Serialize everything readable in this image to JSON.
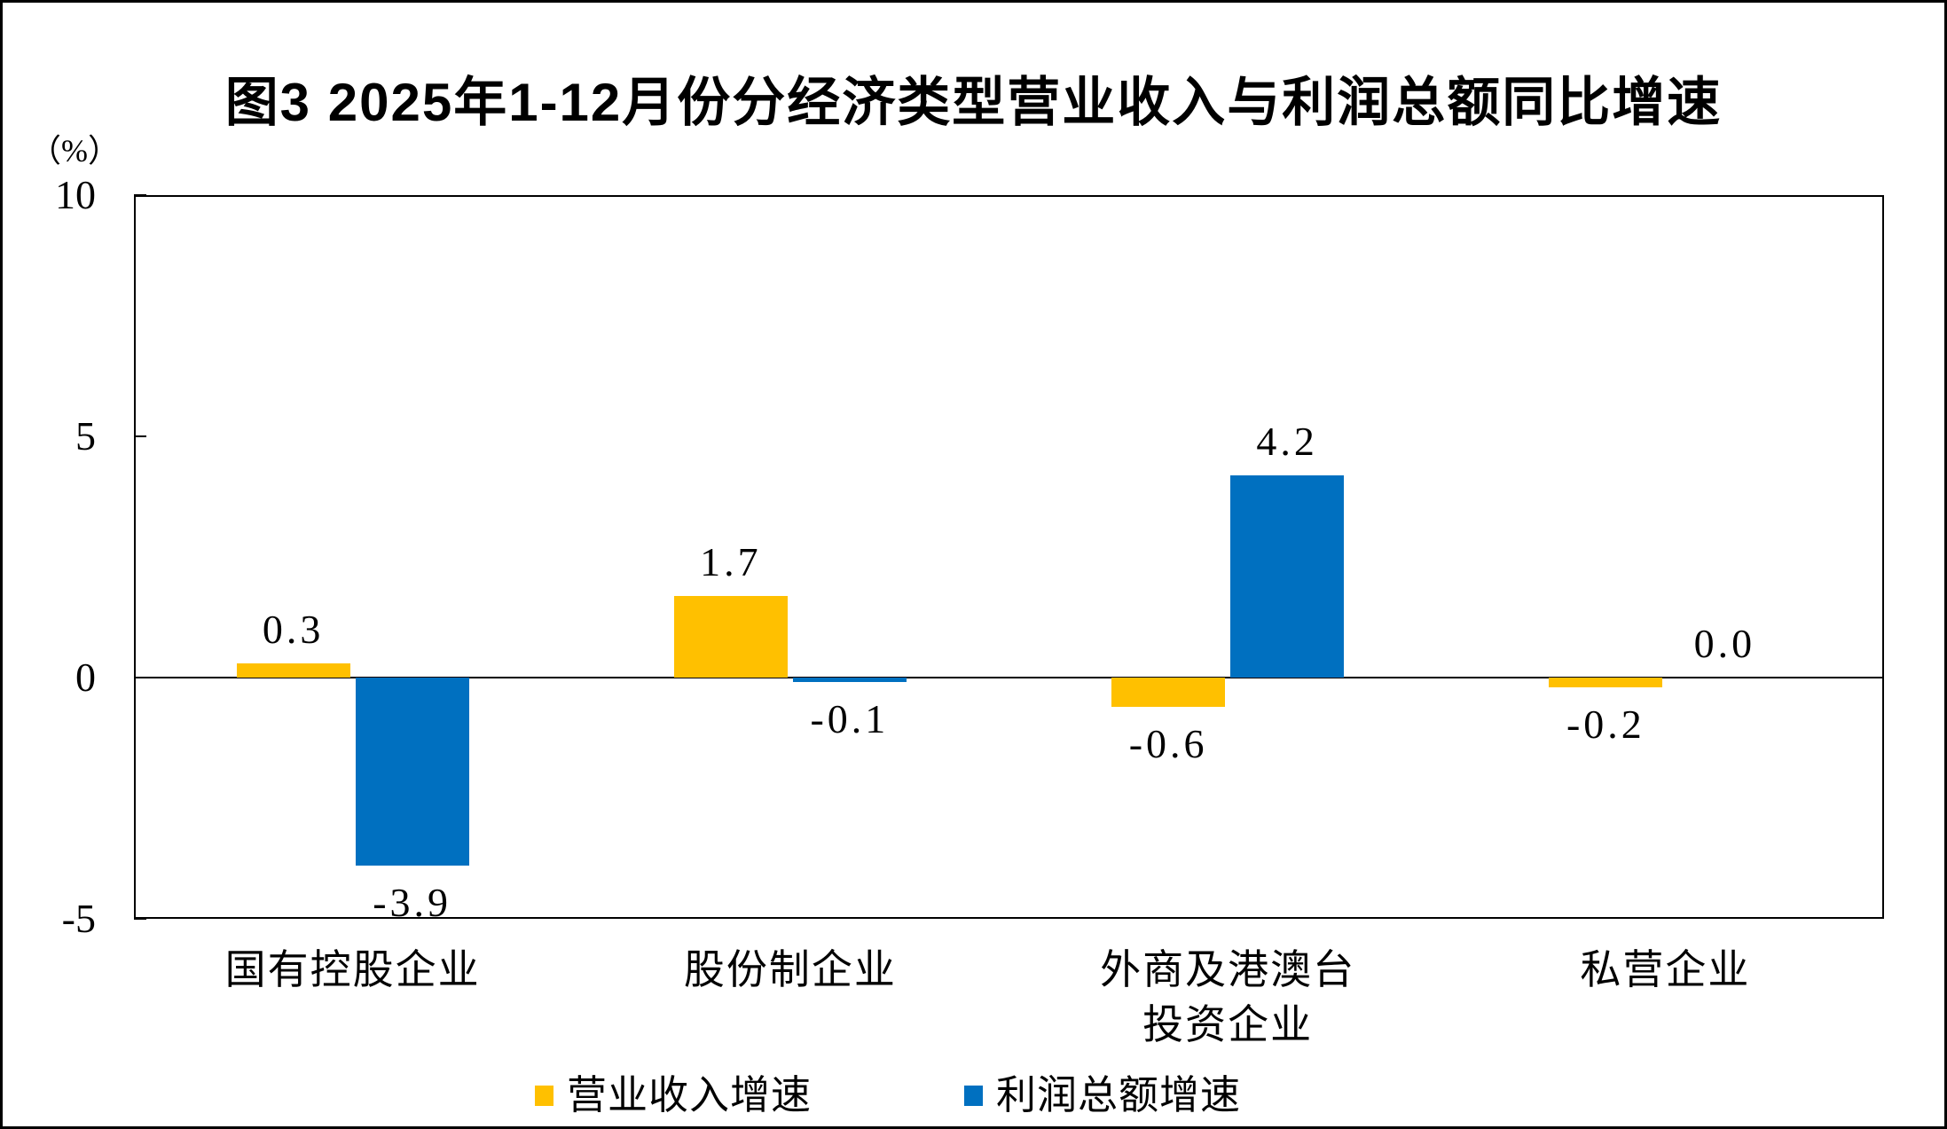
{
  "title": "图3 2025年1-12月份分经济类型营业收入与利润总额同比增速",
  "y_axis": {
    "unit": "（%）",
    "ticks": [
      10,
      5,
      0,
      -5
    ]
  },
  "chart_data": {
    "type": "bar",
    "title": "图3 2025年1-12月份分经济类型营业收入与利润总额同比增速",
    "ylabel": "（%）",
    "ylim": [
      -5,
      10
    ],
    "yticks": [
      10,
      5,
      0,
      -5
    ],
    "grid": false,
    "legend_position": "bottom",
    "categories": [
      "国有控股企业",
      "股份制企业",
      "外商及港澳台\n投资企业",
      "私营企业"
    ],
    "series": [
      {
        "name": "营业收入增速",
        "color": "#FFC000",
        "values": [
          0.3,
          1.7,
          -0.6,
          -0.2
        ],
        "labels": [
          "0.3",
          "1.7",
          "-0.6",
          "-0.2"
        ]
      },
      {
        "name": "利润总额增速",
        "color": "#0070C0",
        "values": [
          -3.9,
          -0.1,
          4.2,
          0.0
        ],
        "labels": [
          "-3.9",
          "-0.1",
          "4.2",
          "0.0"
        ]
      }
    ]
  }
}
